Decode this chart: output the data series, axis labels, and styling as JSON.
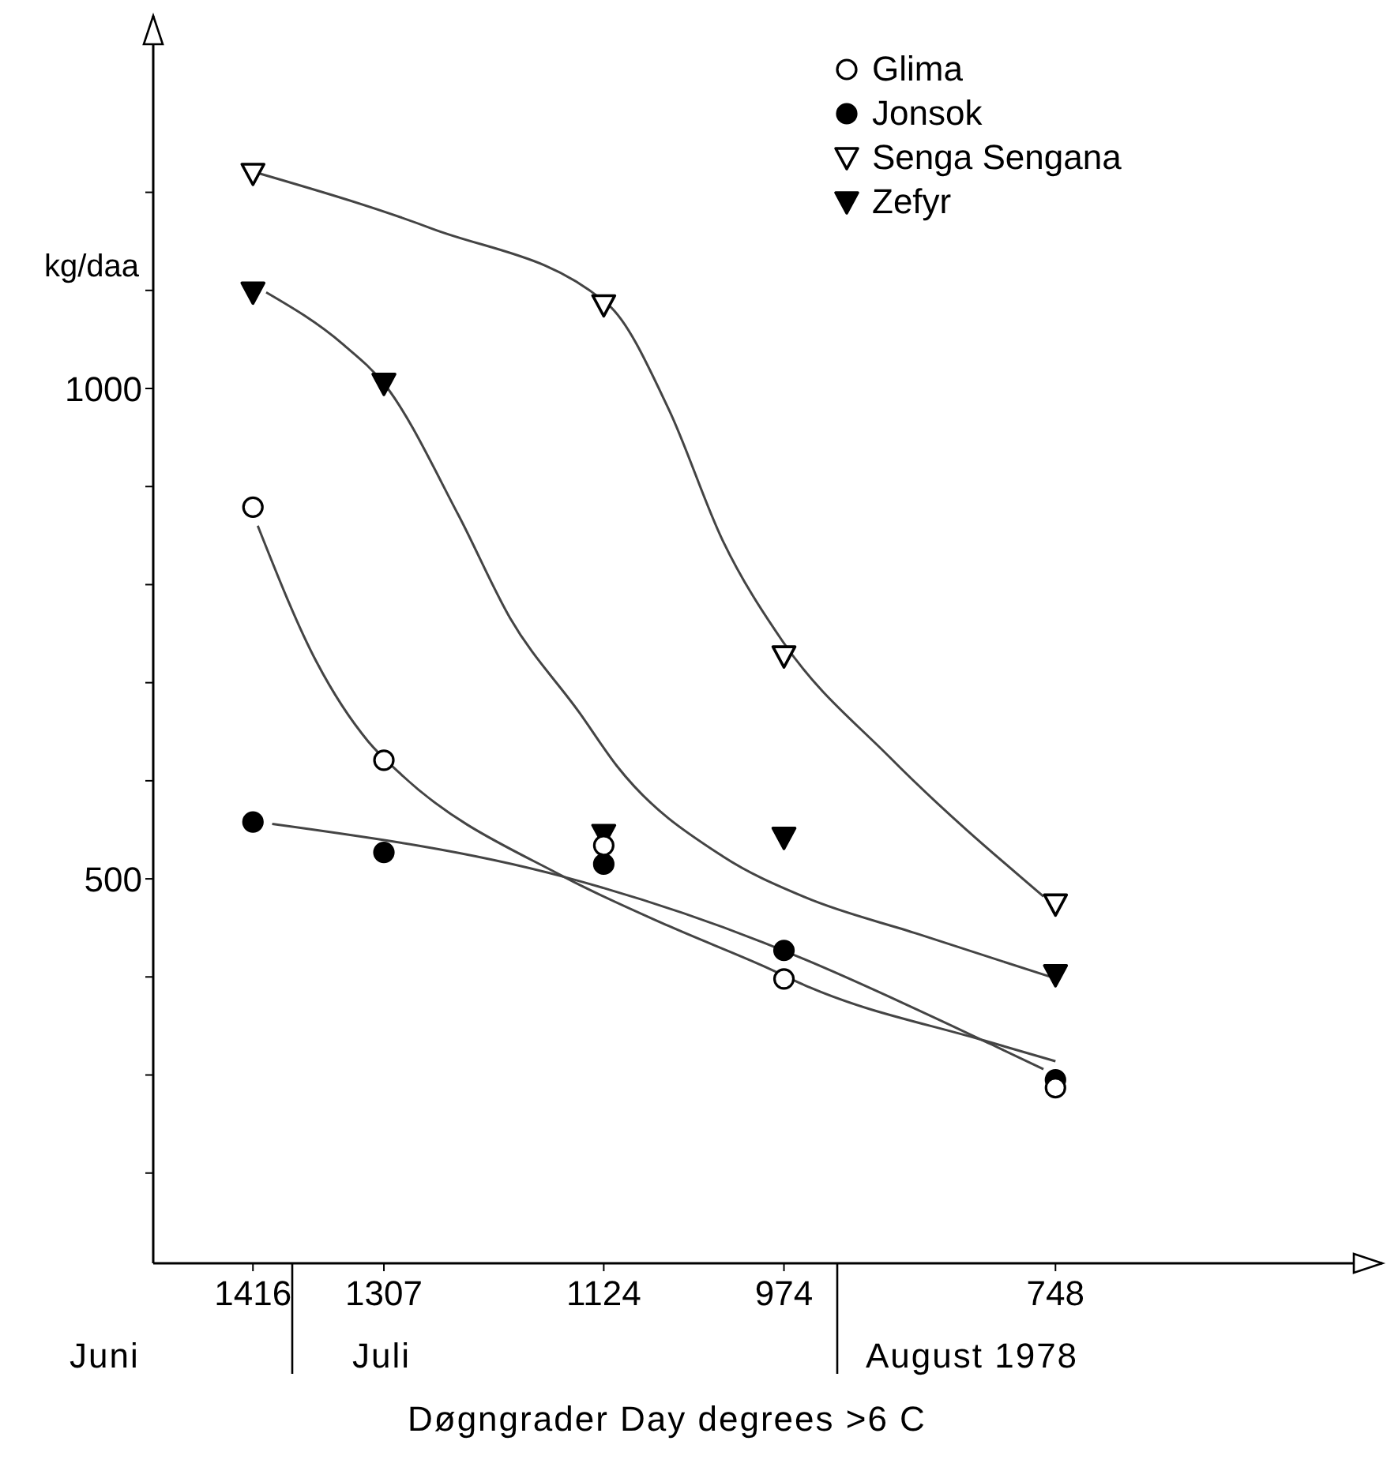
{
  "chart_data": {
    "type": "scatter",
    "xlabel": "Døgngrader Day degrees >6 C",
    "ylabel": "kg/daa",
    "annotations": [
      "Juni",
      "Juli",
      "August 1978"
    ],
    "x": [
      1416,
      1307,
      1124,
      974,
      748
    ],
    "series": [
      {
        "name": "Glima",
        "marker": "circle",
        "color": "#ffffff",
        "values": [
          879,
          621,
          534,
          398,
          287
        ]
      },
      {
        "name": "Jonsok",
        "marker": "circle",
        "color": "#000000",
        "values": [
          558,
          527,
          515,
          427,
          295
        ]
      },
      {
        "name": "Senga Sengana",
        "marker": "triangle",
        "color": "#ffffff",
        "values": [
          1219,
          null,
          1085,
          727,
          474
        ]
      },
      {
        "name": "Zefyr",
        "marker": "triangle",
        "color": "#000000",
        "values": [
          1098,
          1005,
          545,
          542,
          402
        ]
      },
      {
        "type": "line",
        "marker": "none",
        "color": "#444444",
        "x": [
          1412,
          1363,
          1320,
          1294,
          1157,
          1070,
          991,
          952,
          807,
          748
        ],
        "values": [
          860,
          721,
          640,
          608,
          502,
          452,
          411,
          389,
          335,
          314
        ]
      },
      {
        "type": "line",
        "marker": "none",
        "color": "#444444",
        "x": [
          1400,
          1157,
          991,
          959,
          801,
          758
        ],
        "values": [
          556,
          502,
          435,
          419,
          331,
          306
        ]
      },
      {
        "type": "line",
        "marker": "none",
        "color": "#444444",
        "x": [
          1410,
          1267,
          1120,
          1070,
          1025,
          975,
          886,
          758
        ],
        "values": [
          1219,
          1163,
          1085,
          979,
          845,
          742,
          624,
          482
        ]
      },
      {
        "type": "line",
        "marker": "none",
        "color": "#444444",
        "x": [
          1405,
          1341,
          1307,
          1245,
          1202,
          1144,
          1113,
          1025,
          956,
          863,
          752
        ],
        "values": [
          1098,
          1045,
          1005,
          871,
          766,
          669,
          615,
          523,
          481,
          444,
          400
        ]
      }
    ],
    "xlim": [
      1499,
      476
    ],
    "xticks": [
      1416,
      1307,
      1124,
      974,
      748
    ],
    "ylim": [
      108,
      1380
    ],
    "yticks": [
      {
        "value": 200,
        "label": null
      },
      {
        "value": 300,
        "label": null
      },
      {
        "value": 400,
        "label": null
      },
      500,
      {
        "value": 600,
        "label": null
      },
      {
        "value": 700,
        "label": null
      },
      {
        "value": 800,
        "label": null
      },
      {
        "value": 900,
        "label": null
      },
      1000,
      {
        "value": 1100,
        "label": null
      },
      {
        "value": 1200,
        "label": null
      }
    ],
    "grid": false,
    "legend": "top right"
  }
}
